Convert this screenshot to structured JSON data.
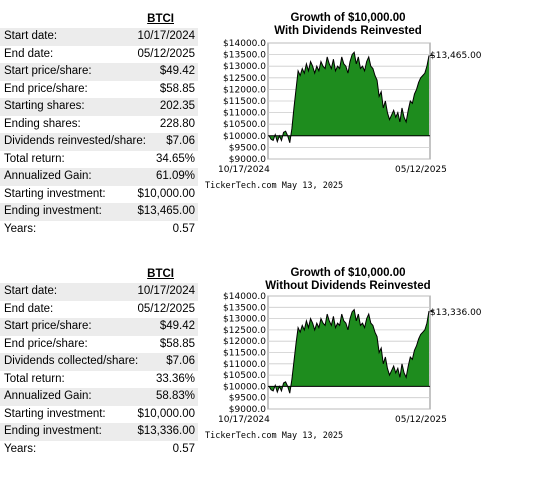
{
  "reinvested": {
    "ticker": "BTCI",
    "stats": [
      {
        "label": "Start date:",
        "value": "10/17/2024"
      },
      {
        "label": "End date:",
        "value": "05/12/2025"
      },
      {
        "label": "Start price/share:",
        "value": "$49.42"
      },
      {
        "label": "End price/share:",
        "value": "$58.85"
      },
      {
        "label": "Starting shares:",
        "value": "202.35"
      },
      {
        "label": "Ending shares:",
        "value": "228.80"
      },
      {
        "label": "Dividends reinvested/share:",
        "value": "$7.06"
      },
      {
        "label": "Total return:",
        "value": "34.65%"
      },
      {
        "label": "Annualized Gain:",
        "value": "61.09%"
      },
      {
        "label": "Starting investment:",
        "value": "$10,000.00"
      },
      {
        "label": "Ending investment:",
        "value": "$13,465.00"
      },
      {
        "label": "Years:",
        "value": "0.57"
      }
    ],
    "chart_title_1": "Growth of $10,000.00",
    "chart_title_2": "With Dividends Reinvested",
    "end_label": "$13,465.00",
    "x_start": "10/17/2024",
    "x_end": "05/12/2025",
    "credit": "TickerTech.com  May 13, 2025"
  },
  "collected": {
    "ticker": "BTCI",
    "stats": [
      {
        "label": "Start date:",
        "value": "10/17/2024"
      },
      {
        "label": "End date:",
        "value": "05/12/2025"
      },
      {
        "label": "Start price/share:",
        "value": "$49.42"
      },
      {
        "label": "End price/share:",
        "value": "$58.85"
      },
      {
        "label": "Dividends collected/share:",
        "value": "$7.06"
      },
      {
        "label": "Total return:",
        "value": "33.36%"
      },
      {
        "label": "Annualized Gain:",
        "value": "58.83%"
      },
      {
        "label": "Starting investment:",
        "value": "$10,000.00"
      },
      {
        "label": "Ending investment:",
        "value": "$13,336.00"
      },
      {
        "label": "Years:",
        "value": "0.57"
      }
    ],
    "chart_title_1": "Growth of $10,000.00",
    "chart_title_2": "Without Dividends Reinvested",
    "end_label": "$13,336.00",
    "x_start": "10/17/2024",
    "x_end": "05/12/2025",
    "credit": "TickerTech.com  May 13, 2025"
  },
  "chart_data": [
    {
      "type": "area",
      "title": "Growth of $10,000.00 With Dividends Reinvested",
      "ylim": [
        9000,
        14000
      ],
      "yticks": [
        "$14000.0",
        "$13500.0",
        "$13000.0",
        "$12500.0",
        "$12000.0",
        "$11500.0",
        "$11000.0",
        "$10500.0",
        "$10000.0",
        "$9500.0",
        "$9000.0"
      ],
      "baseline": 10000,
      "fill_color": "#1e8c1e",
      "grid": true,
      "y": [
        10000,
        9850,
        9800,
        10050,
        9750,
        10000,
        9800,
        10150,
        10200,
        10000,
        9700,
        10300,
        11200,
        12000,
        12800,
        12600,
        12900,
        12700,
        13100,
        12800,
        13200,
        13000,
        12700,
        13000,
        12800,
        13200,
        13000,
        12900,
        13400,
        13100,
        12900,
        13300,
        12800,
        13000,
        12900,
        13400,
        13100,
        13000,
        12700,
        13200,
        13500,
        13600,
        13100,
        13400,
        12900,
        13000,
        12800,
        13200,
        13400,
        13000,
        12900,
        12600,
        12400,
        11700,
        11900,
        11200,
        11500,
        11000,
        10700,
        10900,
        11100,
        10800,
        11000,
        10600,
        11200,
        10800,
        10600,
        11100,
        11500,
        11400,
        11800,
        12000,
        12300,
        12500,
        12600,
        12700,
        13000,
        13465
      ]
    },
    {
      "type": "area",
      "title": "Growth of $10,000.00 Without Dividends Reinvested",
      "ylim": [
        9000,
        14000
      ],
      "yticks": [
        "$14000.0",
        "$13500.0",
        "$13000.0",
        "$12500.0",
        "$12000.0",
        "$11500.0",
        "$11000.0",
        "$10500.0",
        "$10000.0",
        "$9500.0",
        "$9000.0"
      ],
      "baseline": 10000,
      "fill_color": "#1e8c1e",
      "grid": true,
      "y": [
        10000,
        9850,
        9800,
        10050,
        9750,
        10000,
        9800,
        10150,
        10200,
        10000,
        9700,
        10300,
        11100,
        11900,
        12600,
        12400,
        12700,
        12500,
        12900,
        12600,
        13000,
        12800,
        12500,
        12800,
        12600,
        13000,
        12800,
        12700,
        13200,
        12900,
        12700,
        13100,
        12600,
        12800,
        12700,
        13200,
        12900,
        12800,
        12500,
        13000,
        13300,
        13400,
        12900,
        13200,
        12700,
        12800,
        12600,
        13000,
        13200,
        12800,
        12700,
        12400,
        12200,
        11500,
        11700,
        11000,
        11300,
        10800,
        10500,
        10700,
        10900,
        10600,
        10800,
        10400,
        11000,
        10600,
        10400,
        10900,
        11300,
        11200,
        11600,
        11800,
        12100,
        12300,
        12400,
        12500,
        12800,
        13336
      ]
    }
  ]
}
